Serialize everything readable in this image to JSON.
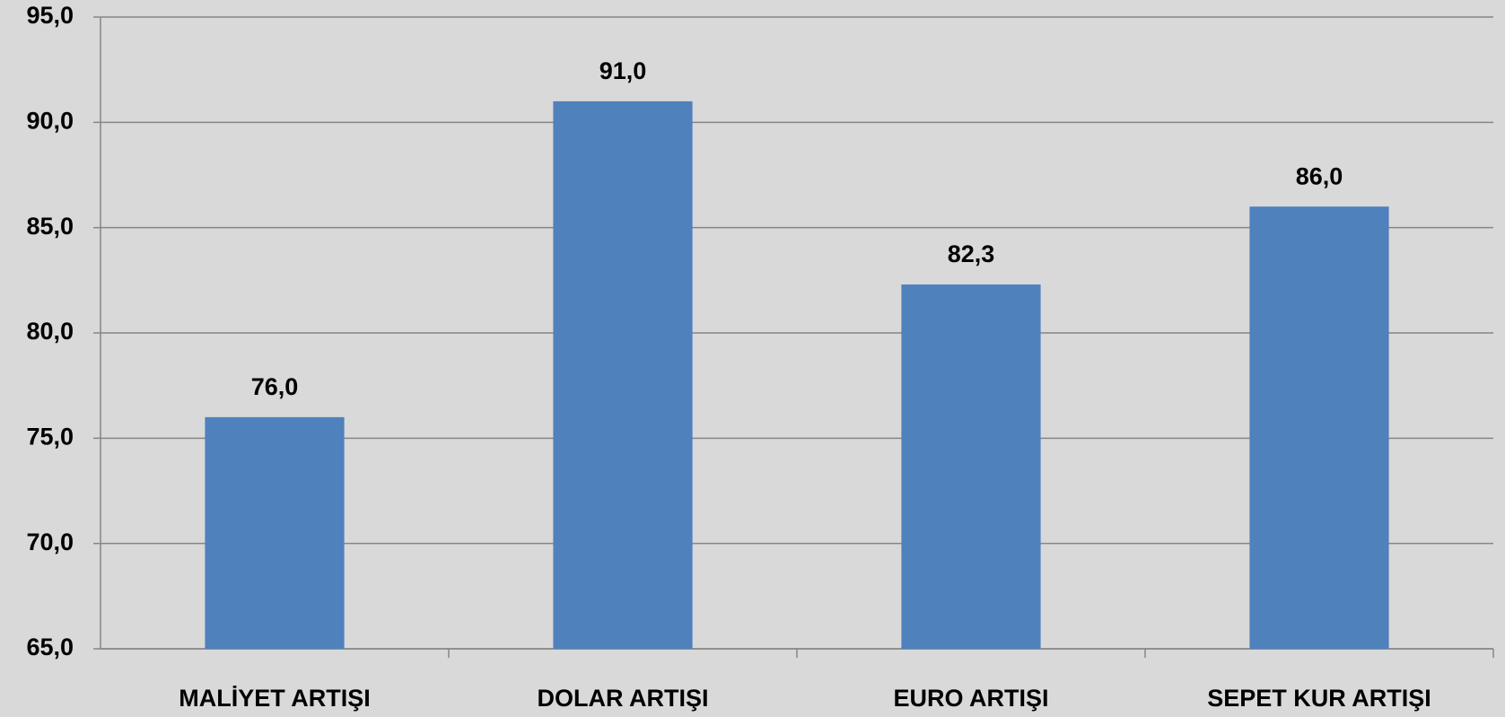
{
  "chart_data": {
    "type": "bar",
    "categories": [
      "MALİYET ARTIŞI",
      "DOLAR ARTIŞI",
      "EURO ARTIŞI",
      "SEPET KUR ARTIŞI"
    ],
    "values": [
      76,
      91,
      82.3,
      86
    ],
    "value_labels": [
      "76,0",
      "91,0",
      "82,3",
      "86,0"
    ],
    "color": "#4f81bd",
    "ylim": [
      65,
      95
    ],
    "yticks": [
      {
        "value": 65,
        "label": "65,0"
      },
      {
        "value": 70,
        "label": "70,0"
      },
      {
        "value": 75,
        "label": "75,0"
      },
      {
        "value": 80,
        "label": "80,0"
      },
      {
        "value": 85,
        "label": "85,0"
      },
      {
        "value": 90,
        "label": "90,0"
      },
      {
        "value": 95,
        "label": "95,0"
      }
    ],
    "grid": true
  }
}
